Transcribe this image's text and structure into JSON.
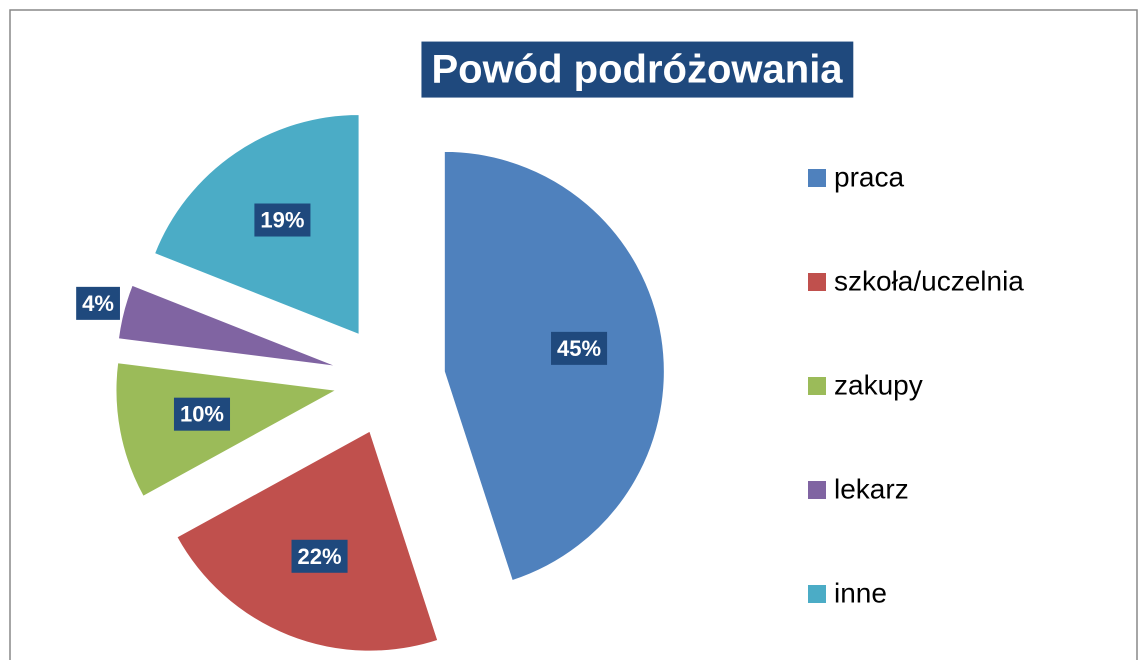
{
  "chart_data": {
    "type": "pie",
    "title": "Powód podróżowania",
    "categories": [
      "praca",
      "szkoła/uczelnia",
      "zakupy",
      "lekarz",
      "inne"
    ],
    "values": [
      45,
      22,
      10,
      4,
      19
    ],
    "value_labels": [
      "45%",
      "22%",
      "10%",
      "4%",
      "19%"
    ],
    "colors": [
      "#4f81bd",
      "#c0504d",
      "#9bbb59",
      "#8064a2",
      "#4bacc6"
    ],
    "legend": "right"
  }
}
